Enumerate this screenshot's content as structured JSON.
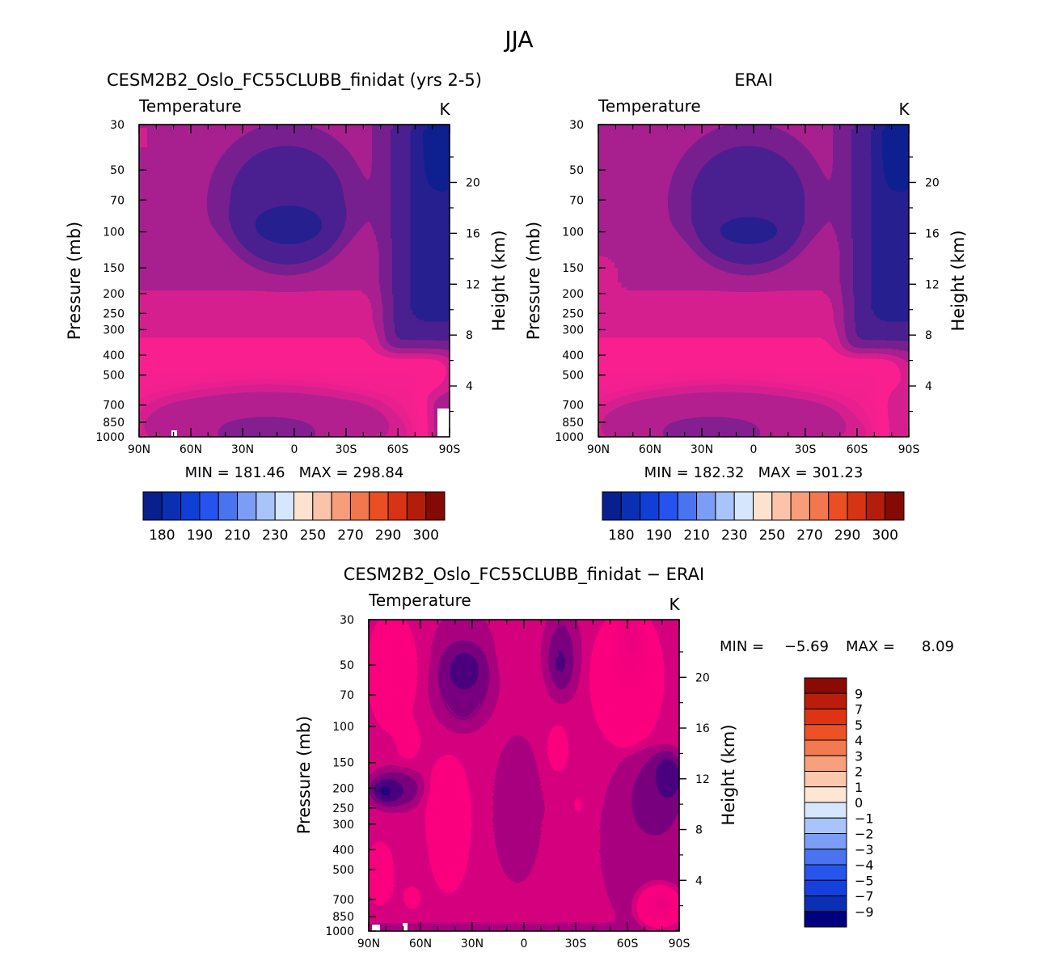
{
  "figure": {
    "title": "JJA"
  },
  "colors": {
    "abs": [
      "#081f8f",
      "#0b2fb3",
      "#0f3fd4",
      "#2553ef",
      "#4a73f0",
      "#7b9df6",
      "#a9c3fb",
      "#d6e6fd",
      "#fde3cf",
      "#fbc4aa",
      "#f79d79",
      "#f2764e",
      "#ea4e22",
      "#d73315",
      "#b21d0c",
      "#840a05"
    ],
    "diff": [
      "#00007f",
      "#0b2fb3",
      "#1540dd",
      "#2755ee",
      "#4a73f0",
      "#7b9df6",
      "#a9c3fb",
      "#d6e6fd",
      "#fde6d3",
      "#fbc7ad",
      "#f7a07e",
      "#f37a50",
      "#ec5226",
      "#dc3414",
      "#b81e0b",
      "#8a0a04"
    ]
  },
  "chart_data": [
    {
      "id": "model",
      "type": "contour",
      "title": "CESM2B2_Oslo_FC55CLUBB_finidat (yrs 2-5)",
      "variable": "Temperature",
      "units": "K",
      "xlabel": "",
      "ylabel": "Pressure (mb)",
      "y2label": "Height (km)",
      "x_ticks": [
        "90N",
        "60N",
        "30N",
        "0",
        "30S",
        "60S",
        "90S"
      ],
      "y_ticks": [
        "30",
        "50",
        "70",
        "100",
        "150",
        "200",
        "250",
        "300",
        "400",
        "500",
        "700",
        "850",
        "1000"
      ],
      "y_tick_values": [
        30,
        50,
        70,
        100,
        150,
        200,
        250,
        300,
        400,
        500,
        700,
        850,
        1000
      ],
      "height_ticks": [
        "20",
        "16",
        "12",
        "8",
        "4"
      ],
      "height_tick_values": [
        20,
        16,
        12,
        8,
        4
      ],
      "min": "181.46",
      "max": "298.84",
      "minmax_text": "MIN = 181.46   MAX = 298.84",
      "colorbar_labels": [
        "180",
        "190",
        "210",
        "230",
        "250",
        "270",
        "290",
        "300"
      ]
    },
    {
      "id": "obs",
      "type": "contour",
      "title": "ERAI",
      "variable": "Temperature",
      "units": "K",
      "xlabel": "",
      "ylabel": "Pressure (mb)",
      "y2label": "Height (km)",
      "x_ticks": [
        "90N",
        "60N",
        "30N",
        "0",
        "30S",
        "60S",
        "90S"
      ],
      "y_ticks": [
        "30",
        "50",
        "70",
        "100",
        "150",
        "200",
        "250",
        "300",
        "400",
        "500",
        "700",
        "850",
        "1000"
      ],
      "y_tick_values": [
        30,
        50,
        70,
        100,
        150,
        200,
        250,
        300,
        400,
        500,
        700,
        850,
        1000
      ],
      "height_ticks": [
        "20",
        "16",
        "12",
        "8",
        "4"
      ],
      "height_tick_values": [
        20,
        16,
        12,
        8,
        4
      ],
      "min": "182.32",
      "max": "301.23",
      "minmax_text": "MIN = 182.32   MAX = 301.23",
      "colorbar_labels": [
        "180",
        "190",
        "210",
        "230",
        "250",
        "270",
        "290",
        "300"
      ]
    },
    {
      "id": "diff",
      "type": "contour",
      "title": "CESM2B2_Oslo_FC55CLUBB_finidat − ERAI",
      "variable": "Temperature",
      "units": "K",
      "xlabel": "",
      "ylabel": "Pressure (mb)",
      "y2label": "Height (km)",
      "x_ticks": [
        "90N",
        "60N",
        "30N",
        "0",
        "30S",
        "60S",
        "90S"
      ],
      "y_ticks": [
        "30",
        "50",
        "70",
        "100",
        "150",
        "200",
        "250",
        "300",
        "400",
        "500",
        "700",
        "850",
        "1000"
      ],
      "y_tick_values": [
        30,
        50,
        70,
        100,
        150,
        200,
        250,
        300,
        400,
        500,
        700,
        850,
        1000
      ],
      "height_ticks": [
        "20",
        "16",
        "12",
        "8",
        "4"
      ],
      "height_tick_values": [
        20,
        16,
        12,
        8,
        4
      ],
      "min_label": "MIN =",
      "min": "−5.69",
      "max_label": "MAX =",
      "max": "8.09",
      "colorbar_labels": [
        "9",
        "7",
        "5",
        "4",
        "3",
        "2",
        "1",
        "0",
        "−1",
        "−2",
        "−3",
        "−4",
        "−5",
        "−7",
        "−9"
      ]
    }
  ]
}
